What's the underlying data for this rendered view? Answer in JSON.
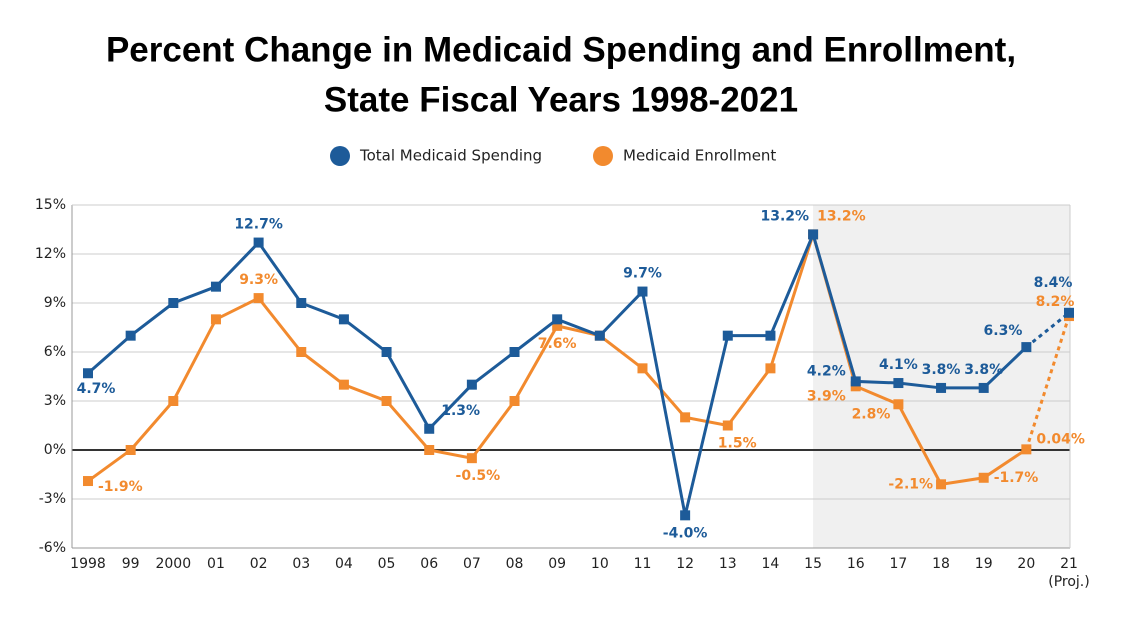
{
  "chart_data": {
    "type": "line",
    "title": "Percent Change in Medicaid Spending and Enrollment,",
    "subtitle": "State Fiscal Years 1998-2021",
    "categories": [
      "1998",
      "99",
      "2000",
      "01",
      "02",
      "03",
      "04",
      "05",
      "06",
      "07",
      "08",
      "09",
      "10",
      "11",
      "12",
      "13",
      "14",
      "15",
      "16",
      "17",
      "18",
      "19",
      "20",
      "21"
    ],
    "category_note": "(Proj.)",
    "series": [
      {
        "name": "Total Medicaid Spending",
        "color": "#1d5b99",
        "values": [
          4.7,
          7,
          9,
          10,
          12.7,
          9,
          8,
          6,
          1.3,
          4,
          6,
          8,
          7,
          9.7,
          -4.0,
          7,
          7,
          13.2,
          4.2,
          4.1,
          3.8,
          3.8,
          6.3,
          8.4
        ],
        "value_labels": [
          "4.7%",
          null,
          null,
          null,
          "12.7%",
          null,
          null,
          null,
          "1.3%",
          null,
          null,
          null,
          null,
          "9.7%",
          "-4.0%",
          null,
          null,
          "13.2%",
          "4.2%",
          "4.1%",
          "3.8%",
          "3.8%",
          "6.3%",
          "8.4%"
        ]
      },
      {
        "name": "Medicaid Enrollment",
        "color": "#f28a2e",
        "values": [
          -1.9,
          0,
          3,
          8,
          9.3,
          6,
          4,
          3,
          0,
          -0.5,
          3,
          7.6,
          7,
          5,
          2,
          1.5,
          5,
          13.2,
          3.9,
          2.8,
          -2.1,
          -1.7,
          0.04,
          8.2
        ],
        "value_labels": [
          "-1.9%",
          null,
          null,
          null,
          "9.3%",
          null,
          null,
          null,
          null,
          "-0.5%",
          null,
          "7.6%",
          null,
          null,
          null,
          "1.5%",
          null,
          "13.2%",
          "3.9%",
          "2.8%",
          "-2.1%",
          "-1.7%",
          "0.04%",
          "8.2%"
        ]
      }
    ],
    "ylim": [
      -6,
      15
    ],
    "yticks": [
      {
        "value": -6,
        "label": "-6%"
      },
      {
        "value": -3,
        "label": "-3%"
      },
      {
        "value": 0,
        "label": "0%"
      },
      {
        "value": 3,
        "label": "3%"
      },
      {
        "value": 6,
        "label": "6%"
      },
      {
        "value": 9,
        "label": "9%"
      },
      {
        "value": 12,
        "label": "12%"
      },
      {
        "value": 15,
        "label": "15%"
      }
    ],
    "grid": true
  }
}
